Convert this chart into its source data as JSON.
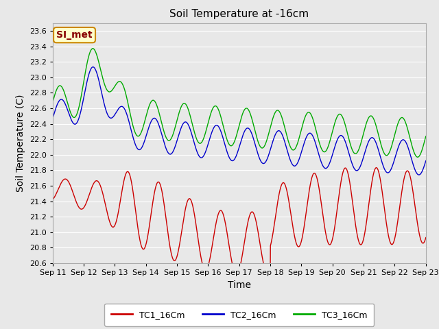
{
  "title": "Soil Temperature at -16cm",
  "xlabel": "Time",
  "ylabel": "Soil Temperature (C)",
  "ylim": [
    20.6,
    23.7
  ],
  "xlim_days": [
    0,
    12
  ],
  "yticks": [
    20.6,
    20.8,
    21.0,
    21.2,
    21.4,
    21.6,
    21.8,
    22.0,
    22.2,
    22.4,
    22.6,
    22.8,
    23.0,
    23.2,
    23.4,
    23.6
  ],
  "xtick_labels": [
    "Sep 11",
    "Sep 12",
    "Sep 13",
    "Sep 14",
    "Sep 15",
    "Sep 16",
    "Sep 17",
    "Sep 18",
    "Sep 19",
    "Sep 20",
    "Sep 21",
    "Sep 22",
    "Sep 23"
  ],
  "xtick_positions": [
    0,
    1,
    2,
    3,
    4,
    5,
    6,
    7,
    8,
    9,
    10,
    11,
    12
  ],
  "color_tc1": "#cc0000",
  "color_tc2": "#0000cc",
  "color_tc3": "#00aa00",
  "label_tc1": "TC1_16Cm",
  "label_tc2": "TC2_16Cm",
  "label_tc3": "TC3_16Cm",
  "bg_color": "#e8e8e8",
  "plot_bg_color": "#e8e8e8",
  "grid_color": "#ffffff",
  "annotation_text": "SI_met",
  "annotation_bg": "#ffffcc",
  "annotation_border": "#cc8800",
  "annotation_text_color": "#880000",
  "title_fontsize": 11,
  "axis_label_fontsize": 10,
  "tick_fontsize": 8,
  "legend_fontsize": 9
}
